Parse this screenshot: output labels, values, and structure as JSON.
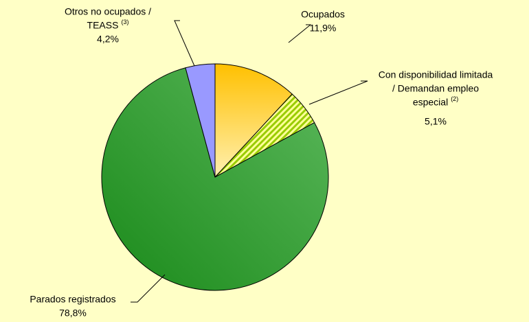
{
  "chart_data": {
    "type": "pie",
    "categories": [
      [
        "Ocupados"
      ],
      [
        "Con disponibilidad limitada",
        "/ Demandan empleo",
        "especial"
      ],
      [
        "Parados registrados"
      ],
      [
        "Otros no ocupados /",
        "TEASS"
      ]
    ],
    "category_notes": [
      null,
      "(2)",
      null,
      "(3)"
    ],
    "values": [
      11.9,
      5.1,
      78.8,
      4.2
    ],
    "value_labels": [
      "11,9%",
      "5,1%",
      "78,8%",
      "4,2%"
    ],
    "colors": [
      "#ffc000",
      "#99cc00",
      "#1a8a1a",
      "#9999ff"
    ],
    "fills": [
      "gradient",
      "hatch",
      "gradient",
      "solid"
    ]
  }
}
